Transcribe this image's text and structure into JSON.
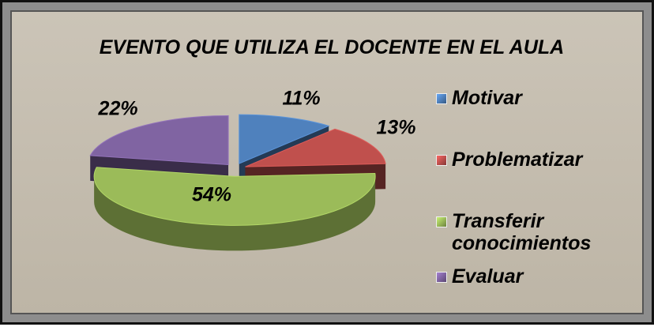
{
  "chart_data": {
    "type": "pie",
    "title": "EVENTO QUE UTILIZA EL DOCENTE EN EL AULA",
    "categories": [
      "Motivar",
      "Problematizar",
      "Transferir conocimientos",
      "Evaluar"
    ],
    "values": [
      11,
      13,
      54,
      22
    ],
    "value_labels": [
      "11%",
      "13%",
      "54%",
      "22%"
    ],
    "colors": [
      "#4f81bd",
      "#c0504d",
      "#9bbb59",
      "#8064a2"
    ],
    "legend": "right"
  }
}
